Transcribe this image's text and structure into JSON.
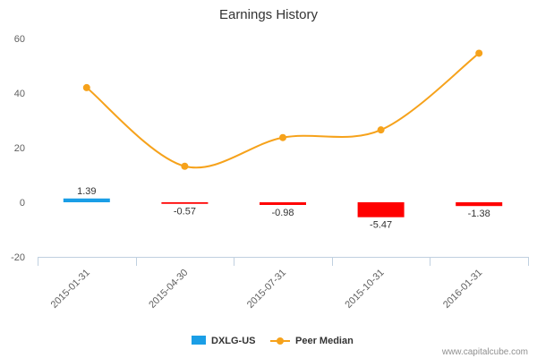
{
  "chart_data": {
    "type": "bar",
    "title": "Earnings History",
    "categories": [
      "2015-01-31",
      "2015-04-30",
      "2015-07-31",
      "2015-10-31",
      "2016-01-31"
    ],
    "ylim": [
      -20,
      60
    ],
    "yticks": [
      -20,
      0,
      20,
      40,
      60
    ],
    "grid": false,
    "legend_position": "bottom-center",
    "series": [
      {
        "name": "DXLG-US",
        "kind": "bar",
        "values": [
          1.39,
          -0.57,
          -0.98,
          -5.47,
          -1.38
        ],
        "value_labels": [
          "1.39",
          "-0.57",
          "-0.98",
          "-5.47",
          "-1.38"
        ],
        "color_positive": "#1a9ee6",
        "color_negative": "#ff0000"
      },
      {
        "name": "Peer Median",
        "kind": "line",
        "values": [
          42,
          13.2,
          23.7,
          26.5,
          54.6
        ],
        "color": "#f6a21b"
      }
    ]
  },
  "credit": "www.capitalcube.com"
}
